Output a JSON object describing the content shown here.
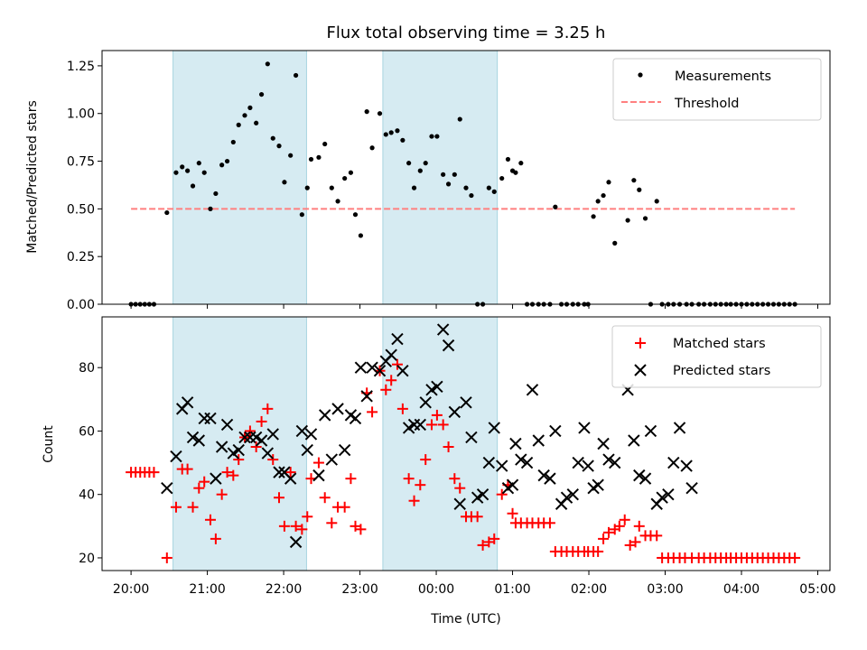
{
  "chart_data": [
    {
      "type": "scatter",
      "title": "Flux total observing time = 3.25 h",
      "ylabel": "Matched/Predicted stars",
      "xlabel": "",
      "ylim": [
        0,
        1.33
      ],
      "yticks": [
        "0.00",
        "0.25",
        "0.50",
        "0.75",
        "1.00",
        "1.25"
      ],
      "legend": {
        "position": "top-right",
        "entries": [
          "Measurements",
          "Threshold"
        ]
      },
      "threshold": {
        "name": "Threshold",
        "value": 0.5,
        "x_start_h": 20.0,
        "x_end_h": 28.7,
        "color": "#ff7f7f"
      },
      "shaded_intervals_h": [
        [
          20.55,
          22.3
        ],
        [
          23.3,
          24.8
        ]
      ],
      "series": [
        {
          "name": "Measurements",
          "color": "#000000",
          "x_h": [
            20.0,
            20.06,
            20.12,
            20.18,
            20.24,
            20.3,
            20.47,
            20.59,
            20.67,
            20.74,
            20.81,
            20.89,
            20.96,
            21.04,
            21.11,
            21.19,
            21.26,
            21.34,
            21.41,
            21.49,
            21.56,
            21.64,
            21.71,
            21.79,
            21.86,
            21.94,
            22.01,
            22.09,
            22.16,
            22.24,
            22.31,
            22.36,
            22.46,
            22.54,
            22.63,
            22.71,
            22.8,
            22.88,
            22.94,
            23.01,
            23.09,
            23.16,
            23.26,
            23.34,
            23.41,
            23.49,
            23.56,
            23.64,
            23.71,
            23.79,
            23.86,
            23.94,
            24.01,
            24.09,
            24.16,
            24.24,
            24.31,
            24.39,
            24.46,
            24.54,
            24.61,
            24.69,
            24.76,
            24.86,
            24.94,
            25.0,
            25.04,
            25.11,
            25.19,
            25.26,
            25.34,
            25.41,
            25.49,
            25.56,
            25.64,
            25.71,
            25.79,
            25.86,
            25.94,
            25.99,
            26.06,
            26.12,
            26.19,
            26.26,
            26.34,
            26.51,
            26.59,
            26.66,
            26.74,
            26.81,
            26.89,
            26.96,
            27.04,
            27.11,
            27.19,
            27.28,
            27.35,
            27.44,
            27.51,
            27.59,
            27.66,
            27.73,
            27.8,
            27.86,
            27.93,
            28.0,
            28.07,
            28.14,
            28.21,
            28.28,
            28.35,
            28.42,
            28.49,
            28.56,
            28.63,
            28.7
          ],
          "y": [
            0,
            0,
            0,
            0,
            0,
            0,
            0.48,
            0.69,
            0.72,
            0.7,
            0.62,
            0.74,
            0.69,
            0.5,
            0.58,
            0.73,
            0.75,
            0.85,
            0.94,
            0.99,
            1.03,
            0.95,
            1.1,
            1.26,
            0.87,
            0.83,
            0.64,
            0.78,
            1.2,
            0.47,
            0.61,
            0.76,
            0.77,
            0.84,
            0.61,
            0.54,
            0.66,
            0.69,
            0.47,
            0.36,
            1.01,
            0.82,
            1.0,
            0.89,
            0.9,
            0.91,
            0.86,
            0.74,
            0.61,
            0.7,
            0.74,
            0.88,
            0.88,
            0.68,
            0.63,
            0.68,
            0.97,
            0.61,
            0.57,
            0,
            0,
            0.61,
            0.59,
            0.66,
            0.76,
            0.7,
            0.69,
            0.74,
            0,
            0,
            0,
            0,
            0,
            0.51,
            0,
            0,
            0,
            0,
            0,
            0,
            0.46,
            0.54,
            0.57,
            0.64,
            0.32,
            0.44,
            0.65,
            0.6,
            0.45,
            0,
            0.54,
            0,
            0,
            0,
            0,
            0,
            0,
            0,
            0,
            0,
            0,
            0,
            0,
            0,
            0,
            0,
            0,
            0,
            0,
            0,
            0,
            0,
            0,
            0,
            0,
            0
          ]
        }
      ]
    },
    {
      "type": "scatter",
      "xlabel": "Time (UTC)",
      "ylabel": "Count",
      "ylim": [
        16,
        96
      ],
      "yticks": [
        "20",
        "40",
        "60",
        "80"
      ],
      "xticks": [
        "20:00",
        "21:00",
        "22:00",
        "23:00",
        "00:00",
        "01:00",
        "02:00",
        "03:00",
        "04:00",
        "05:00"
      ],
      "xticks_h": [
        20,
        21,
        22,
        23,
        24,
        25,
        26,
        27,
        28,
        29
      ],
      "xlim_h": [
        19.62,
        29.16
      ],
      "legend": {
        "position": "top-right",
        "entries": [
          "Matched stars",
          "Predicted stars"
        ]
      },
      "shaded_intervals_h": [
        [
          20.55,
          22.3
        ],
        [
          23.3,
          24.8
        ]
      ],
      "series": [
        {
          "name": "Matched stars",
          "marker": "+",
          "color": "#ff0000",
          "x_h": [
            20.0,
            20.06,
            20.12,
            20.18,
            20.24,
            20.3,
            20.47,
            20.59,
            20.67,
            20.74,
            20.81,
            20.89,
            20.96,
            21.04,
            21.11,
            21.19,
            21.26,
            21.34,
            21.41,
            21.49,
            21.56,
            21.64,
            21.71,
            21.79,
            21.86,
            21.94,
            22.01,
            22.09,
            22.16,
            22.24,
            22.31,
            22.36,
            22.46,
            22.54,
            22.63,
            22.71,
            22.8,
            22.88,
            22.94,
            23.01,
            23.09,
            23.16,
            23.26,
            23.34,
            23.41,
            23.49,
            23.56,
            23.64,
            23.71,
            23.79,
            23.86,
            23.94,
            24.01,
            24.09,
            24.16,
            24.24,
            24.31,
            24.39,
            24.46,
            24.54,
            24.61,
            24.69,
            24.76,
            24.86,
            24.94,
            25.0,
            25.04,
            25.11,
            25.19,
            25.26,
            25.34,
            25.41,
            25.49,
            25.56,
            25.64,
            25.71,
            25.79,
            25.86,
            25.94,
            25.99,
            26.06,
            26.12,
            26.19,
            26.26,
            26.34,
            26.4,
            26.47,
            26.54,
            26.61,
            26.66,
            26.74,
            26.81,
            26.89,
            26.96,
            27.04,
            27.11,
            27.19,
            27.26,
            27.35,
            27.44,
            27.51,
            27.59,
            27.66,
            27.73,
            27.8,
            27.86,
            27.93,
            28.0,
            28.07,
            28.14,
            28.21,
            28.28,
            28.35,
            28.42,
            28.49,
            28.56,
            28.63,
            28.7
          ],
          "y": [
            47,
            47,
            47,
            47,
            47,
            47,
            20,
            36,
            48,
            48,
            36,
            42,
            44,
            32,
            26,
            40,
            47,
            46,
            51,
            58,
            60,
            55,
            63,
            67,
            51,
            39,
            30,
            47,
            30,
            29,
            33,
            45,
            50,
            39,
            31,
            36,
            36,
            45,
            30,
            29,
            72,
            66,
            79,
            73,
            76,
            81,
            67,
            45,
            38,
            43,
            51,
            62,
            65,
            62,
            55,
            45,
            42,
            33,
            33,
            33,
            24,
            25,
            26,
            40,
            43,
            34,
            31,
            31,
            31,
            31,
            31,
            31,
            31,
            22,
            22,
            22,
            22,
            22,
            22,
            22,
            22,
            22,
            26,
            28,
            29,
            30,
            32,
            24,
            25,
            30,
            27,
            27,
            27,
            20,
            20,
            20,
            20,
            20,
            20,
            20,
            20,
            20,
            20,
            20,
            20,
            20,
            20,
            20,
            20,
            20,
            20,
            20,
            20,
            20,
            20,
            20,
            20,
            20
          ]
        },
        {
          "name": "Predicted stars",
          "marker": "x",
          "color": "#000000",
          "x_h": [
            20.47,
            20.59,
            20.67,
            20.74,
            20.81,
            20.89,
            20.96,
            21.04,
            21.11,
            21.19,
            21.26,
            21.34,
            21.41,
            21.49,
            21.56,
            21.64,
            21.71,
            21.79,
            21.86,
            21.94,
            22.01,
            22.09,
            22.16,
            22.24,
            22.31,
            22.36,
            22.46,
            22.54,
            22.63,
            22.71,
            22.8,
            22.88,
            22.94,
            23.01,
            23.09,
            23.16,
            23.26,
            23.34,
            23.41,
            23.49,
            23.56,
            23.64,
            23.71,
            23.79,
            23.86,
            23.94,
            24.01,
            24.09,
            24.16,
            24.24,
            24.31,
            24.39,
            24.46,
            24.54,
            24.61,
            24.69,
            24.76,
            24.86,
            24.94,
            25.0,
            25.04,
            25.11,
            25.19,
            25.26,
            25.34,
            25.41,
            25.49,
            25.56,
            25.64,
            25.71,
            25.79,
            25.86,
            25.94,
            25.99,
            26.06,
            26.12,
            26.19,
            26.26,
            26.34,
            26.51,
            26.59,
            26.66,
            26.74,
            26.81,
            26.89,
            26.96,
            27.04,
            27.11,
            27.19,
            27.28,
            27.35
          ],
          "y": [
            42,
            52,
            67,
            69,
            58,
            57,
            64,
            64,
            45,
            55,
            62,
            53,
            54,
            58,
            58,
            58,
            57,
            53,
            59,
            47,
            47,
            45,
            25,
            60,
            54,
            59,
            46,
            65,
            51,
            67,
            54,
            65,
            64,
            80,
            71,
            80,
            79,
            82,
            84,
            89,
            79,
            61,
            62,
            62,
            69,
            73,
            74,
            92,
            87,
            66,
            37,
            69,
            58,
            39,
            40,
            50,
            61,
            49,
            42,
            43,
            56,
            51,
            50,
            73,
            57,
            46,
            45,
            60,
            37,
            39,
            40,
            50,
            61,
            49,
            42,
            43,
            56,
            51,
            50,
            73,
            57,
            46,
            45,
            60,
            37,
            39,
            40,
            50,
            61,
            49,
            42
          ]
        }
      ]
    }
  ]
}
